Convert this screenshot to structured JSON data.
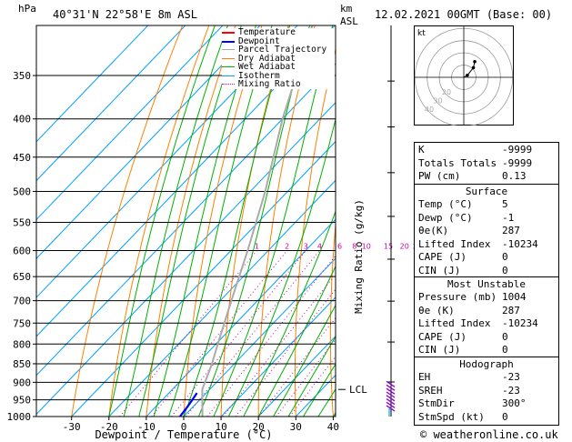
{
  "header": {
    "hpa_label": "hPa",
    "location": "40°31'N 22°58'E 8m ASL",
    "km_label": "km",
    "asl_label": "ASL",
    "datetime": "12.02.2021 00GMT (Base: 00)"
  },
  "legend": [
    {
      "name": "Temperature",
      "color": "#ff0000",
      "style": "solid"
    },
    {
      "name": "Dewpoint",
      "color": "#0000ff",
      "style": "solid"
    },
    {
      "name": "Parcel Trajectory",
      "color": "#aaaaaa",
      "style": "solid"
    },
    {
      "name": "Dry Adiabat",
      "color": "#ff8000",
      "style": "solid"
    },
    {
      "name": "Wet Adiabat",
      "color": "#00b000",
      "style": "solid"
    },
    {
      "name": "Isotherm",
      "color": "#00a0ff",
      "style": "solid"
    },
    {
      "name": "Mixing Ratio",
      "color": "#cc00aa",
      "style": "dotted"
    }
  ],
  "chart_data": {
    "type": "line",
    "xlabel": "Dewpoint / Temperature (°C)",
    "ylabel": "hPa",
    "y2label": "Mixing Ratio (g/kg)",
    "xlim": [
      -40,
      40
    ],
    "ylim": [
      1000,
      300
    ],
    "log_y": true,
    "x_ticks": [
      -30,
      -20,
      -10,
      0,
      10,
      20,
      30,
      40
    ],
    "pressure_levels": [
      350,
      400,
      450,
      500,
      550,
      600,
      650,
      700,
      750,
      800,
      850,
      900,
      950,
      1000
    ],
    "mixing_ratio_labels": [
      "1",
      "2",
      "3",
      "4",
      "6",
      "8",
      "10",
      "15",
      "20",
      "25"
    ],
    "mixing_ratio_values": [
      1,
      2,
      3,
      4,
      6,
      8,
      10,
      15,
      20,
      25
    ],
    "km_ticks": [
      {
        "label": "8",
        "p": 356
      },
      {
        "label": "7",
        "p": 410
      },
      {
        "label": "6",
        "p": 472
      },
      {
        "label": "5",
        "p": 540
      },
      {
        "label": "4",
        "p": 616
      },
      {
        "label": "3",
        "p": 701
      },
      {
        "label": "2",
        "p": 795
      },
      {
        "label": "1",
        "p": 899
      }
    ],
    "lcl_label": "LCL",
    "lcl_pressure": 920,
    "series": [
      {
        "name": "Dewpoint",
        "color": "#0000ff",
        "points": [
          {
            "p": 1000,
            "t": -1
          },
          {
            "p": 970,
            "t": -1.5
          },
          {
            "p": 950,
            "t": -2
          },
          {
            "p": 930,
            "t": -2.5
          }
        ]
      },
      {
        "name": "Parcel Trajectory",
        "color": "#aaaaaa",
        "points": [
          {
            "p": 1000,
            "t": 5
          },
          {
            "p": 920,
            "t": -2
          },
          {
            "p": 850,
            "t": -6
          },
          {
            "p": 800,
            "t": -9.5
          },
          {
            "p": 700,
            "t": -17
          },
          {
            "p": 600,
            "t": -25.5
          },
          {
            "p": 500,
            "t": -36
          },
          {
            "p": 400,
            "t": -50
          },
          {
            "p": 300,
            "t": -66
          }
        ]
      }
    ]
  },
  "hodograph": {
    "label": "kt",
    "ring_labels": [
      "20",
      "30",
      "40"
    ],
    "points": [
      {
        "dir": 300,
        "spd": 3
      },
      {
        "dir": 315,
        "spd": 10
      },
      {
        "dir": 325,
        "spd": 14
      }
    ]
  },
  "indices": [
    {
      "key": "K",
      "value": "-9999"
    },
    {
      "key": "Totals Totals",
      "value": "-9999"
    },
    {
      "key": "PW (cm)",
      "value": "0.13"
    }
  ],
  "surface": {
    "title": "Surface",
    "rows": [
      {
        "key": "Temp (°C)",
        "value": "5"
      },
      {
        "key": "Dewp (°C)",
        "value": "-1"
      },
      {
        "key": "θe(K)",
        "value": "287"
      },
      {
        "key": "Lifted Index",
        "value": "-10234"
      },
      {
        "key": "CAPE (J)",
        "value": "0"
      },
      {
        "key": "CIN (J)",
        "value": "0"
      }
    ]
  },
  "most_unstable": {
    "title": "Most Unstable",
    "rows": [
      {
        "key": "Pressure (mb)",
        "value": "1004"
      },
      {
        "key": "θe (K)",
        "value": "287"
      },
      {
        "key": "Lifted Index",
        "value": "-10234"
      },
      {
        "key": "CAPE (J)",
        "value": "0"
      },
      {
        "key": "CIN (J)",
        "value": "0"
      }
    ]
  },
  "hodograph_table": {
    "title": "Hodograph",
    "rows": [
      {
        "key": "EH",
        "value": "-23"
      },
      {
        "key": "SREH",
        "value": "-23"
      },
      {
        "key": "StmDir",
        "value": "300°"
      },
      {
        "key": "StmSpd (kt)",
        "value": "0"
      }
    ]
  },
  "footer": "© weatheronline.co.uk",
  "colors": {
    "isotherm": "#00a0ff",
    "dry_adiabat": "#ff8000",
    "wet_adiabat": "#00b000",
    "mixing_ratio": "#cc00aa",
    "parcel": "#aaaaaa",
    "dewpoint": "#0000ff",
    "wind": "#8800cc"
  }
}
